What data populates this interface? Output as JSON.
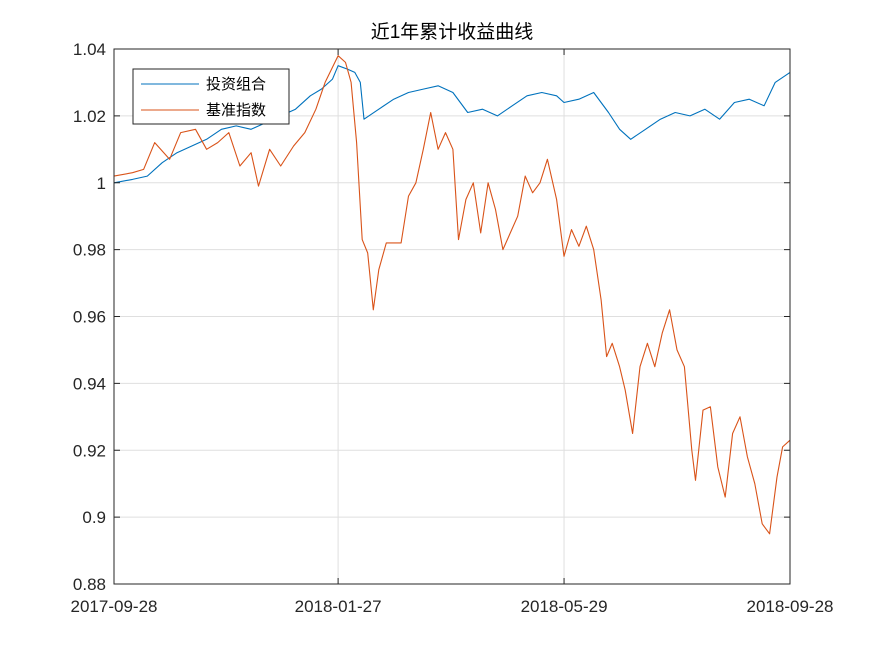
{
  "chart_data": {
    "type": "line",
    "title": "近1年累计收益曲线",
    "xlabel": "",
    "ylabel": "",
    "x_ticks": [
      "2017-09-28",
      "2018-01-27",
      "2018-05-29",
      "2018-09-28"
    ],
    "x_range": [
      "2017-09-28",
      "2018-09-28"
    ],
    "ylim": [
      0.88,
      1.04
    ],
    "y_ticks": [
      0.88,
      0.9,
      0.92,
      0.94,
      0.96,
      0.98,
      1,
      1.02,
      1.04
    ],
    "grid": true,
    "legend_position": "top-left",
    "series": [
      {
        "name": "投资组合",
        "color": "#0072BD",
        "points": [
          [
            "2017-09-28",
            1.0
          ],
          [
            "2017-10-08",
            1.001
          ],
          [
            "2017-10-16",
            1.002
          ],
          [
            "2017-10-24",
            1.006
          ],
          [
            "2017-11-01",
            1.009
          ],
          [
            "2017-11-09",
            1.011
          ],
          [
            "2017-11-17",
            1.013
          ],
          [
            "2017-11-25",
            1.016
          ],
          [
            "2017-12-03",
            1.017
          ],
          [
            "2017-12-11",
            1.016
          ],
          [
            "2017-12-19",
            1.018
          ],
          [
            "2017-12-27",
            1.02
          ],
          [
            "2018-01-04",
            1.022
          ],
          [
            "2018-01-12",
            1.026
          ],
          [
            "2018-01-18",
            1.028
          ],
          [
            "2018-01-24",
            1.031
          ],
          [
            "2018-01-27",
            1.035
          ],
          [
            "2018-02-01",
            1.034
          ],
          [
            "2018-02-05",
            1.033
          ],
          [
            "2018-02-08",
            1.03
          ],
          [
            "2018-02-10",
            1.019
          ],
          [
            "2018-02-18",
            1.022
          ],
          [
            "2018-02-26",
            1.025
          ],
          [
            "2018-03-06",
            1.027
          ],
          [
            "2018-03-14",
            1.028
          ],
          [
            "2018-03-22",
            1.029
          ],
          [
            "2018-03-30",
            1.027
          ],
          [
            "2018-04-07",
            1.021
          ],
          [
            "2018-04-15",
            1.022
          ],
          [
            "2018-04-23",
            1.02
          ],
          [
            "2018-05-01",
            1.023
          ],
          [
            "2018-05-09",
            1.026
          ],
          [
            "2018-05-17",
            1.027
          ],
          [
            "2018-05-25",
            1.026
          ],
          [
            "2018-05-29",
            1.024
          ],
          [
            "2018-06-06",
            1.025
          ],
          [
            "2018-06-14",
            1.027
          ],
          [
            "2018-06-22",
            1.021
          ],
          [
            "2018-06-28",
            1.016
          ],
          [
            "2018-07-04",
            1.013
          ],
          [
            "2018-07-12",
            1.016
          ],
          [
            "2018-07-20",
            1.019
          ],
          [
            "2018-07-28",
            1.021
          ],
          [
            "2018-08-05",
            1.02
          ],
          [
            "2018-08-13",
            1.022
          ],
          [
            "2018-08-21",
            1.019
          ],
          [
            "2018-08-29",
            1.024
          ],
          [
            "2018-09-06",
            1.025
          ],
          [
            "2018-09-14",
            1.023
          ],
          [
            "2018-09-20",
            1.03
          ],
          [
            "2018-09-28",
            1.033
          ]
        ]
      },
      {
        "name": "基准指数",
        "color": "#D95319",
        "points": [
          [
            "2017-09-28",
            1.002
          ],
          [
            "2017-10-08",
            1.003
          ],
          [
            "2017-10-14",
            1.004
          ],
          [
            "2017-10-20",
            1.012
          ],
          [
            "2017-10-28",
            1.007
          ],
          [
            "2017-11-03",
            1.015
          ],
          [
            "2017-11-11",
            1.016
          ],
          [
            "2017-11-17",
            1.01
          ],
          [
            "2017-11-23",
            1.012
          ],
          [
            "2017-11-29",
            1.015
          ],
          [
            "2017-12-05",
            1.005
          ],
          [
            "2017-12-11",
            1.009
          ],
          [
            "2017-12-15",
            0.999
          ],
          [
            "2017-12-21",
            1.01
          ],
          [
            "2017-12-27",
            1.005
          ],
          [
            "2018-01-03",
            1.011
          ],
          [
            "2018-01-09",
            1.015
          ],
          [
            "2018-01-15",
            1.022
          ],
          [
            "2018-01-20",
            1.03
          ],
          [
            "2018-01-27",
            1.038
          ],
          [
            "2018-01-31",
            1.036
          ],
          [
            "2018-02-03",
            1.03
          ],
          [
            "2018-02-06",
            1.012
          ],
          [
            "2018-02-09",
            0.983
          ],
          [
            "2018-02-12",
            0.979
          ],
          [
            "2018-02-15",
            0.962
          ],
          [
            "2018-02-18",
            0.974
          ],
          [
            "2018-02-22",
            0.982
          ],
          [
            "2018-03-02",
            0.982
          ],
          [
            "2018-03-06",
            0.996
          ],
          [
            "2018-03-10",
            1.0
          ],
          [
            "2018-03-14",
            1.01
          ],
          [
            "2018-03-18",
            1.021
          ],
          [
            "2018-03-22",
            1.01
          ],
          [
            "2018-03-26",
            1.015
          ],
          [
            "2018-03-30",
            1.01
          ],
          [
            "2018-04-02",
            0.983
          ],
          [
            "2018-04-06",
            0.995
          ],
          [
            "2018-04-10",
            1.0
          ],
          [
            "2018-04-14",
            0.985
          ],
          [
            "2018-04-18",
            1.0
          ],
          [
            "2018-04-22",
            0.992
          ],
          [
            "2018-04-26",
            0.98
          ],
          [
            "2018-04-30",
            0.985
          ],
          [
            "2018-05-04",
            0.99
          ],
          [
            "2018-05-08",
            1.002
          ],
          [
            "2018-05-12",
            0.997
          ],
          [
            "2018-05-16",
            1.0
          ],
          [
            "2018-05-20",
            1.007
          ],
          [
            "2018-05-25",
            0.995
          ],
          [
            "2018-05-29",
            0.978
          ],
          [
            "2018-06-02",
            0.986
          ],
          [
            "2018-06-06",
            0.981
          ],
          [
            "2018-06-10",
            0.987
          ],
          [
            "2018-06-14",
            0.98
          ],
          [
            "2018-06-18",
            0.965
          ],
          [
            "2018-06-21",
            0.948
          ],
          [
            "2018-06-24",
            0.952
          ],
          [
            "2018-06-28",
            0.945
          ],
          [
            "2018-07-01",
            0.938
          ],
          [
            "2018-07-05",
            0.925
          ],
          [
            "2018-07-09",
            0.945
          ],
          [
            "2018-07-13",
            0.952
          ],
          [
            "2018-07-17",
            0.945
          ],
          [
            "2018-07-21",
            0.955
          ],
          [
            "2018-07-25",
            0.962
          ],
          [
            "2018-07-29",
            0.95
          ],
          [
            "2018-08-02",
            0.945
          ],
          [
            "2018-08-06",
            0.92
          ],
          [
            "2018-08-08",
            0.911
          ],
          [
            "2018-08-12",
            0.932
          ],
          [
            "2018-08-16",
            0.933
          ],
          [
            "2018-08-20",
            0.915
          ],
          [
            "2018-08-24",
            0.906
          ],
          [
            "2018-08-28",
            0.925
          ],
          [
            "2018-09-01",
            0.93
          ],
          [
            "2018-09-05",
            0.918
          ],
          [
            "2018-09-09",
            0.91
          ],
          [
            "2018-09-13",
            0.898
          ],
          [
            "2018-09-17",
            0.895
          ],
          [
            "2018-09-21",
            0.912
          ],
          [
            "2018-09-24",
            0.921
          ],
          [
            "2018-09-28",
            0.923
          ]
        ]
      }
    ]
  }
}
